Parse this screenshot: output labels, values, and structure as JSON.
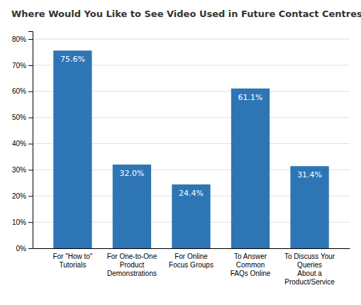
{
  "chart_data": {
    "type": "bar",
    "title": "Where Would You Like to See Video Used in Future Contact Centres?",
    "categories": [
      "For \"How to\"\nTutorials",
      "For One-to-One\nProduct\nDemonstrations",
      "For Online\nFocus Groups",
      "To Answer\nCommon\nFAQs Online",
      "To Discuss Your\nQueries\nAbout a\nProduct/Service"
    ],
    "values": [
      75.6,
      32.0,
      24.4,
      61.1,
      31.4
    ],
    "value_labels": [
      "75.6%",
      "32.0%",
      "24.4%",
      "61.1%",
      "31.4%"
    ],
    "data_labels": true,
    "color": "#2E75B6",
    "ylim": [
      0,
      83
    ],
    "yticks": [
      {
        "value": 0,
        "label": "0%"
      },
      {
        "value": 10,
        "label": "10%"
      },
      {
        "value": 20,
        "label": "20%"
      },
      {
        "value": 30,
        "label": "30%"
      },
      {
        "value": 40,
        "label": "40%"
      },
      {
        "value": 50,
        "label": "50%"
      },
      {
        "value": 60,
        "label": "60%"
      },
      {
        "value": 70,
        "label": "70%"
      },
      {
        "value": 80,
        "label": "80%"
      }
    ],
    "grid": true
  }
}
